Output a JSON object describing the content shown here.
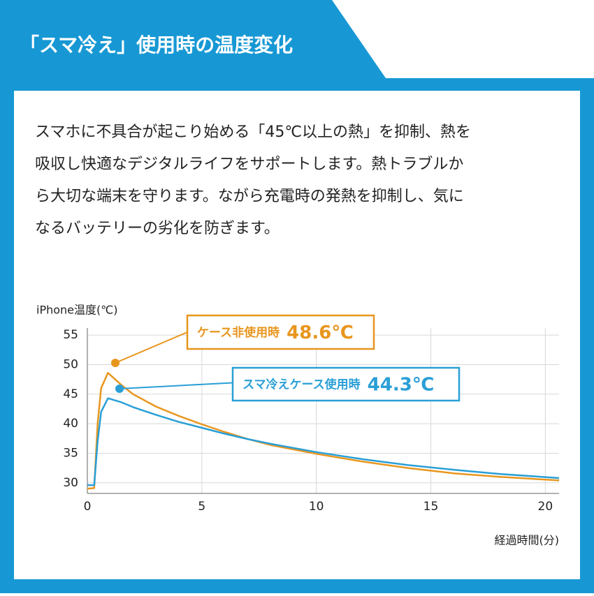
{
  "header": {
    "title": "「スマ冷え」使用時の温度変化"
  },
  "body": {
    "lines": [
      "スマホに不具合が起こり始める「45℃以上の熱」を抑制、熱を",
      "吸収し快適なデジタルライフをサポートします。熱トラブルか",
      "ら大切な端末を守ります。ながら充電時の発熱を抑制し、気に",
      "なるバッテリーの劣化を防ぎます。"
    ]
  },
  "chart_data": {
    "type": "line",
    "y_label": "iPhone温度(℃)",
    "x_label": "経過時間(分)",
    "x": [
      0,
      0.3,
      0.45,
      0.6,
      0.9,
      1.5,
      2,
      3,
      4,
      5,
      6,
      7,
      8,
      10,
      12,
      14,
      16,
      18,
      20.6
    ],
    "series": [
      {
        "name": "ケース非使用時",
        "peak_label": "48.6℃",
        "color": "#e8961e",
        "values": [
          29,
          29.1,
          40,
          46,
          48.6,
          46.5,
          45,
          42.9,
          41.3,
          39.9,
          38.6,
          37.4,
          36.4,
          34.9,
          33.6,
          32.5,
          31.6,
          31,
          30.4
        ]
      },
      {
        "name": "スマ冷えケース使用時",
        "peak_label": "44.3℃",
        "color": "#2a9fd6",
        "values": [
          29.6,
          29.6,
          37,
          42,
          44.3,
          43.6,
          42.8,
          41.5,
          40.3,
          39.3,
          38.3,
          37.4,
          36.6,
          35.2,
          34,
          33,
          32.2,
          31.5,
          30.8
        ]
      }
    ],
    "xlim": [
      0,
      20.6
    ],
    "xticks": [
      0,
      5,
      10,
      15,
      20
    ],
    "ylim": [
      28.2,
      56.2
    ],
    "yticks": [
      30,
      35,
      40,
      45,
      50,
      55
    ],
    "grid": true
  }
}
